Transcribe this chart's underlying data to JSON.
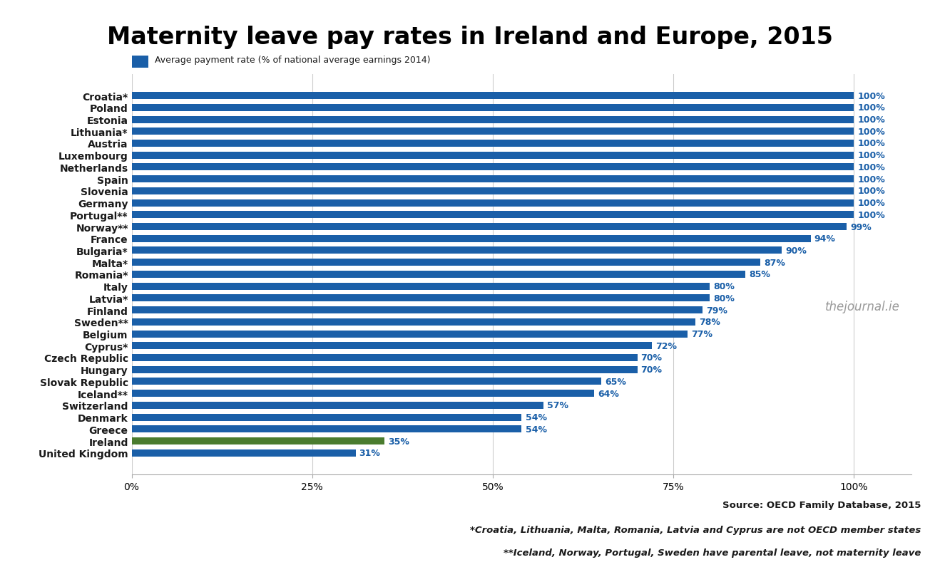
{
  "title": "Maternity leave pay rates in Ireland and Europe, 2015",
  "legend_label": "Average payment rate (% of national average earnings 2014)",
  "categories": [
    "Croatia*",
    "Poland",
    "Estonia",
    "Lithuania*",
    "Austria",
    "Luxembourg",
    "Netherlands",
    "Spain",
    "Slovenia",
    "Germany",
    "Portugal**",
    "Norway**",
    "France",
    "Bulgaria*",
    "Malta*",
    "Romania*",
    "Italy",
    "Latvia*",
    "Finland",
    "Sweden**",
    "Belgium",
    "Cyprus*",
    "Czech Republic",
    "Hungary",
    "Slovak Republic",
    "Iceland**",
    "Switzerland",
    "Denmark",
    "Greece",
    "Ireland",
    "United Kingdom"
  ],
  "values": [
    100,
    100,
    100,
    100,
    100,
    100,
    100,
    100,
    100,
    100,
    100,
    99,
    94,
    90,
    87,
    85,
    80,
    80,
    79,
    78,
    77,
    72,
    70,
    70,
    65,
    64,
    57,
    54,
    54,
    35,
    31
  ],
  "bar_color_default": "#1a5fa8",
  "bar_color_ireland": "#4a7c2f",
  "source_line1": "Source: OECD Family Database, 2015",
  "source_line2": "*Croatia, Lithuania, Malta, Romania, Latvia and Cyprus are not OECD member states",
  "source_line3": "**Iceland, Norway, Portugal, Sweden have parental leave, not maternity leave",
  "watermark": "thejournal.ie",
  "title_fontsize": 24,
  "label_fontsize": 10,
  "tick_fontsize": 10,
  "annotation_fontsize": 9,
  "source_fontsize": 9.5,
  "xlim": [
    0,
    108
  ],
  "background_color": "#ffffff",
  "bar_height": 0.6,
  "title_color": "#000000",
  "label_color": "#1a1a1a",
  "annotation_color": "#1a5fa8",
  "source_color": "#1a1a1a",
  "watermark_color": "#888888"
}
